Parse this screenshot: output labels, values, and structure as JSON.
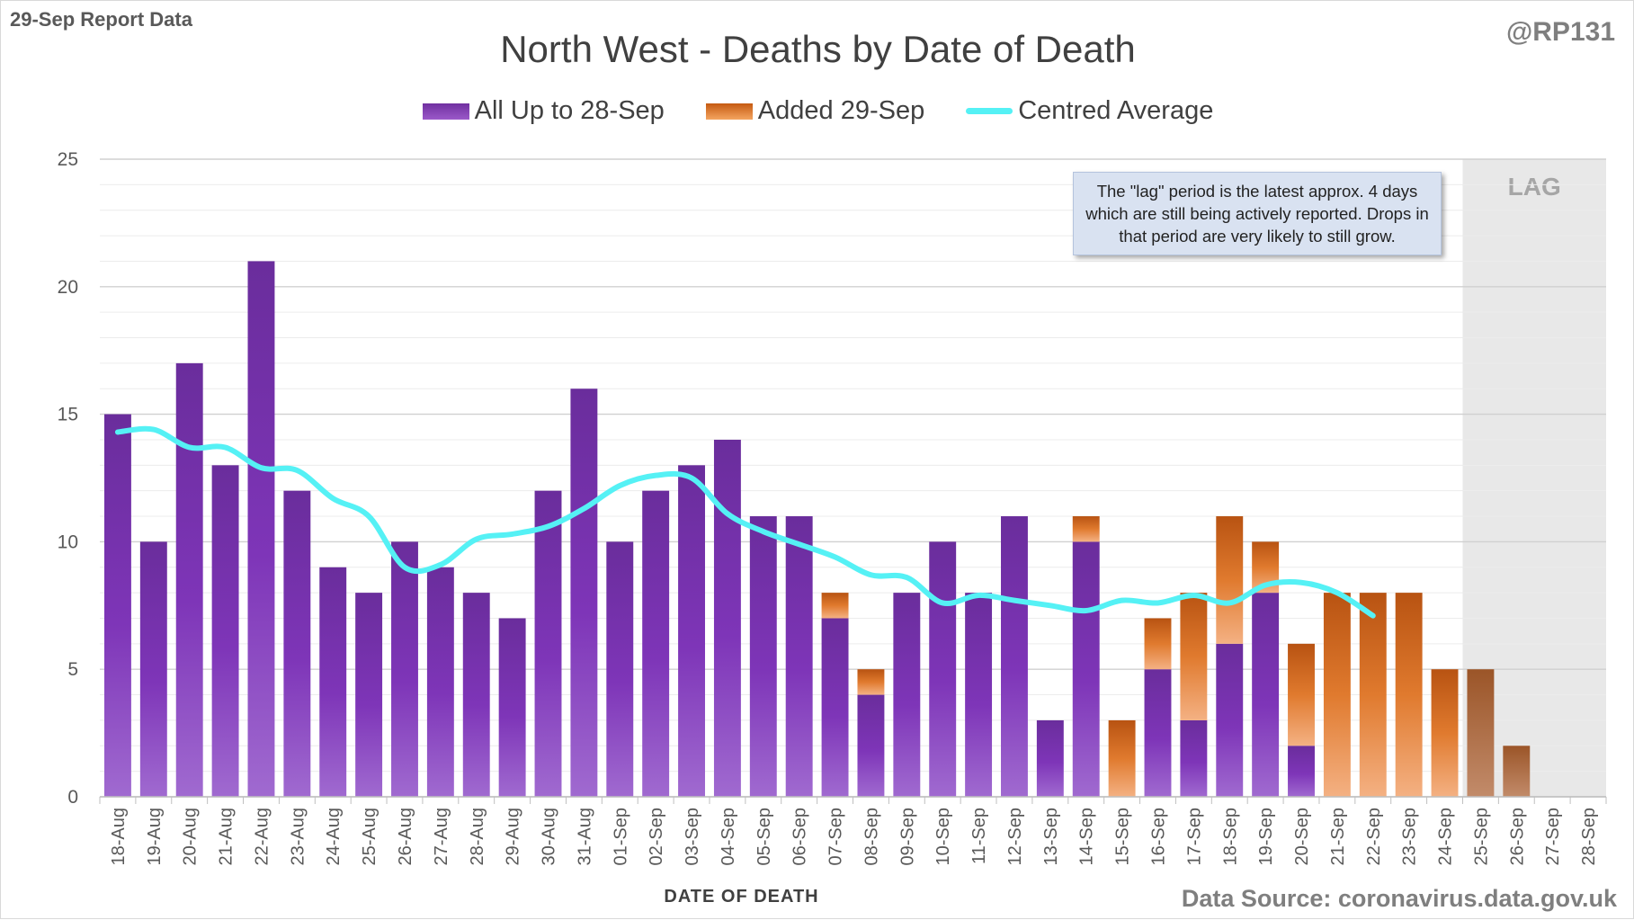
{
  "header": {
    "report_label": "29-Sep Report Data",
    "handle": "@RP131"
  },
  "chart_data": {
    "type": "bar",
    "stacked": true,
    "title": "North West - Deaths by Date of Death",
    "xlabel": "DATE OF DEATH",
    "ylabel": "",
    "ylim": [
      0,
      25
    ],
    "yticks": [
      0,
      5,
      10,
      15,
      20,
      25
    ],
    "categories": [
      "18-Aug",
      "19-Aug",
      "20-Aug",
      "21-Aug",
      "22-Aug",
      "23-Aug",
      "24-Aug",
      "25-Aug",
      "26-Aug",
      "27-Aug",
      "28-Aug",
      "29-Aug",
      "30-Aug",
      "31-Aug",
      "01-Sep",
      "02-Sep",
      "03-Sep",
      "04-Sep",
      "05-Sep",
      "06-Sep",
      "07-Sep",
      "08-Sep",
      "09-Sep",
      "10-Sep",
      "11-Sep",
      "12-Sep",
      "13-Sep",
      "14-Sep",
      "15-Sep",
      "16-Sep",
      "17-Sep",
      "18-Sep",
      "19-Sep",
      "20-Sep",
      "21-Sep",
      "22-Sep",
      "23-Sep",
      "24-Sep",
      "25-Sep",
      "26-Sep",
      "27-Sep",
      "28-Sep"
    ],
    "series": [
      {
        "name": "All Up to 28-Sep",
        "kind": "bar",
        "color": "#7030a0",
        "values": [
          15,
          10,
          17,
          13,
          21,
          12,
          9,
          8,
          10,
          9,
          8,
          7,
          12,
          16,
          10,
          12,
          13,
          14,
          11,
          11,
          7,
          4,
          8,
          10,
          8,
          11,
          3,
          10,
          0,
          5,
          3,
          6,
          8,
          2,
          0,
          0,
          0,
          0,
          0,
          0,
          0,
          0
        ]
      },
      {
        "name": "Added 29-Sep",
        "kind": "bar",
        "color": "#c55a11",
        "values": [
          0,
          0,
          0,
          0,
          0,
          0,
          0,
          0,
          0,
          0,
          0,
          0,
          0,
          0,
          0,
          0,
          0,
          0,
          0,
          0,
          1,
          1,
          0,
          0,
          0,
          0,
          0,
          1,
          3,
          2,
          5,
          5,
          2,
          4,
          8,
          8,
          8,
          5,
          5,
          2,
          0,
          0
        ]
      },
      {
        "name": "Centred Average",
        "kind": "line",
        "color": "#55f1f5",
        "values": [
          14.3,
          14.4,
          13.7,
          13.7,
          12.9,
          12.8,
          11.7,
          11.0,
          9.0,
          9.1,
          10.1,
          10.3,
          10.6,
          11.3,
          12.2,
          12.6,
          12.5,
          11.1,
          10.4,
          9.9,
          9.4,
          8.7,
          8.6,
          7.6,
          7.9,
          7.7,
          7.5,
          7.3,
          7.7,
          7.6,
          7.9,
          7.6,
          8.3,
          8.4,
          8.0,
          7.1,
          null,
          null,
          null,
          null,
          null,
          null
        ]
      }
    ],
    "lag_region": {
      "from": "25-Sep",
      "to": "28-Sep",
      "label": "LAG"
    },
    "annotation": "The \"lag\" period is the latest approx. 4 days which are still being actively reported. Drops in that period are very likely to still grow.",
    "source": "Data Source: coronavirus.data.gov.uk"
  }
}
